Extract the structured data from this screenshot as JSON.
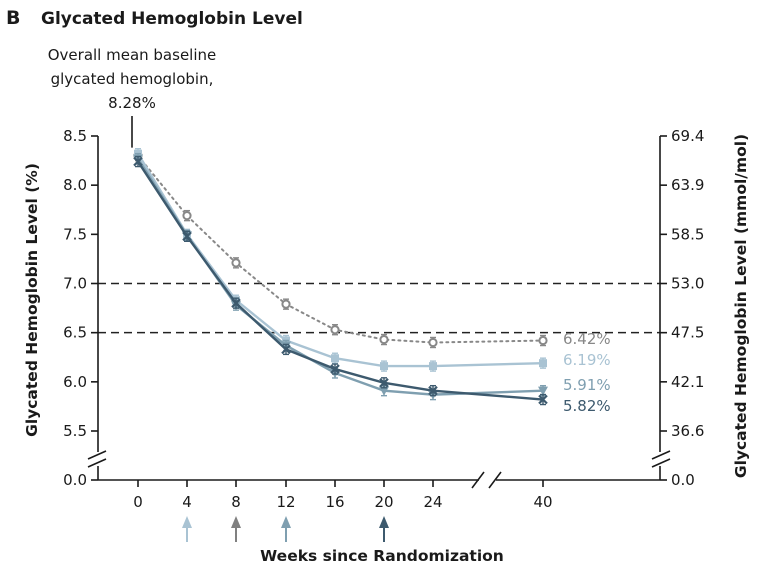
{
  "panel": {
    "letter": "B",
    "title": "Glycated Hemoglobin Level"
  },
  "annotation": {
    "lines": [
      "Overall mean baseline",
      "glycated hemoglobin,",
      "8.28%"
    ]
  },
  "chart_data": {
    "type": "line",
    "title": "Glycated Hemoglobin Level",
    "xlabel": "Weeks since Randomization",
    "ylabel": "Glycated Hemoglobin Level (%)",
    "y2label": "Glycated Hemoglobin Level (mmol/mol)",
    "x": [
      0,
      4,
      8,
      12,
      16,
      20,
      24,
      40
    ],
    "x_ticks": [
      "0",
      "4",
      "8",
      "12",
      "16",
      "20",
      "24",
      "40"
    ],
    "y_ticks": [
      "0.0",
      "5.5",
      "6.0",
      "6.5",
      "7.0",
      "7.5",
      "8.0",
      "8.5"
    ],
    "y_tick_values": [
      0.0,
      5.5,
      6.0,
      6.5,
      7.0,
      7.5,
      8.0,
      8.5
    ],
    "y2_ticks": [
      "0.0",
      "36.6",
      "42.1",
      "47.5",
      "53.0",
      "58.5",
      "63.9",
      "69.4"
    ],
    "ylim": [
      5.2,
      8.6
    ],
    "axis_break_y": true,
    "axis_break_x": "between 24 and 40",
    "reference_lines": [
      7.0,
      6.5
    ],
    "baseline_marker": {
      "x": 0,
      "value": 8.28
    },
    "arrows": [
      {
        "x": 4,
        "color": "#a9c3d3"
      },
      {
        "x": 8,
        "color": "#808080"
      },
      {
        "x": 12,
        "color": "#7f9fb0"
      },
      {
        "x": 20,
        "color": "#3d5a6e"
      }
    ],
    "series": [
      {
        "values": [
          8.3,
          7.69,
          7.21,
          6.79,
          6.53,
          6.43,
          6.4,
          6.42
        ],
        "end_label": "6.42%",
        "color": "#888888",
        "style": "dotted",
        "marker": "open-circle"
      },
      {
        "values": [
          8.32,
          7.5,
          6.83,
          6.42,
          6.24,
          6.16,
          6.16,
          6.19
        ],
        "end_label": "6.19%",
        "color": "#a9c3d3",
        "style": "solid",
        "marker": "square"
      },
      {
        "values": [
          8.27,
          7.49,
          6.78,
          6.37,
          6.09,
          5.91,
          5.87,
          5.91
        ],
        "end_label": "5.91%",
        "color": "#7f9fb0",
        "style": "solid",
        "marker": "triangle-down"
      },
      {
        "values": [
          8.24,
          7.48,
          6.8,
          6.33,
          6.13,
          5.99,
          5.91,
          5.82
        ],
        "end_label": "5.82%",
        "color": "#3d5a6e",
        "style": "solid",
        "marker": "x"
      }
    ]
  }
}
